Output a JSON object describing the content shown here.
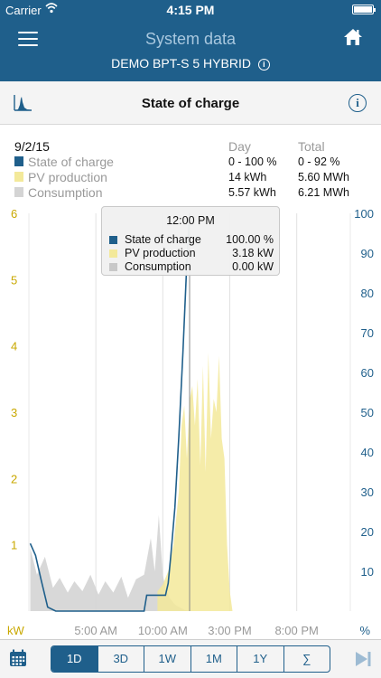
{
  "status_bar": {
    "carrier": "Carrier",
    "time": "4:15 PM"
  },
  "nav": {
    "title": "System data",
    "device": "DEMO BPT-S 5 HYBRID",
    "device_info": "i"
  },
  "chart_header": {
    "title": "State of charge",
    "info": "i"
  },
  "summary": {
    "date": "9/2/15",
    "col_day": "Day",
    "col_total": "Total",
    "rows": [
      {
        "name": "State of charge",
        "day": "0 - 100 %",
        "total": "0 - 92 %",
        "color": "#1f5f8b"
      },
      {
        "name": "PV production",
        "day": "14 kWh",
        "total": "5.60 MWh",
        "color": "#f3e99a"
      },
      {
        "name": "Consumption",
        "day": "5.57 kWh",
        "total": "6.21 MWh",
        "color": "#d4d4d4"
      }
    ]
  },
  "tooltip": {
    "title": "12:00 PM",
    "rows": [
      {
        "label": "State of charge",
        "value": "100.00 %",
        "color": "#1f5f8b"
      },
      {
        "label": "PV production",
        "value": "3.18 kW",
        "color": "#f3e99a"
      },
      {
        "label": "Consumption",
        "value": "0.00 kW",
        "color": "#c8c8c8"
      }
    ]
  },
  "chart_data": {
    "type": "area",
    "x_unit": "hour",
    "xlim": [
      0,
      24
    ],
    "x_ticks": [
      {
        "x": 5,
        "label": "5:00 AM"
      },
      {
        "x": 10,
        "label": "10:00 AM"
      },
      {
        "x": 15,
        "label": "3:00 PM"
      },
      {
        "x": 20,
        "label": "8:00 PM"
      }
    ],
    "y_left": {
      "unit": "kW",
      "range": [
        0,
        6
      ],
      "ticks": [
        1,
        2,
        3,
        4,
        5,
        6
      ],
      "color": "#c9a800"
    },
    "y_right": {
      "unit": "%",
      "range": [
        0,
        100
      ],
      "ticks": [
        10,
        20,
        30,
        40,
        50,
        60,
        70,
        80,
        90,
        100
      ],
      "color": "#1f5f8b"
    },
    "cursor_x": 12,
    "series": [
      {
        "name": "Consumption",
        "axis": "left",
        "color": "#d4d4d4",
        "x": [
          0.1,
          0.6,
          1.2,
          1.8,
          2.3,
          2.9,
          3.4,
          4.0,
          4.6,
          5.2,
          5.7,
          6.3,
          6.9,
          7.4,
          8.0,
          8.6,
          9.1,
          9.4,
          9.7,
          10.0,
          10.2,
          10.5,
          10.9,
          11.3,
          11.6,
          12.0
        ],
        "values": [
          0.95,
          0.55,
          0.82,
          0.35,
          0.5,
          0.28,
          0.45,
          0.3,
          0.55,
          0.25,
          0.45,
          0.28,
          0.52,
          0.2,
          0.48,
          0.55,
          1.1,
          0.6,
          1.45,
          0.55,
          0.35,
          0.2,
          0.1,
          0.05,
          0.02,
          0.0
        ]
      },
      {
        "name": "PV production",
        "axis": "left",
        "color": "#f3e99a",
        "x": [
          9.6,
          10.0,
          10.4,
          10.8,
          11.2,
          11.4,
          11.6,
          11.8,
          12.0,
          12.2,
          12.4,
          12.6,
          12.8,
          13.0,
          13.2,
          13.4,
          13.6,
          13.8,
          14.0,
          14.2,
          14.4,
          14.6,
          14.8,
          15.0,
          15.2
        ],
        "values": [
          0.3,
          0.4,
          0.6,
          1.0,
          1.8,
          2.8,
          3.1,
          2.3,
          3.18,
          3.4,
          2.8,
          3.5,
          2.2,
          3.7,
          2.1,
          3.9,
          2.6,
          3.2,
          3.0,
          3.85,
          2.6,
          2.3,
          1.0,
          0.3,
          0.0
        ]
      },
      {
        "name": "State of charge",
        "axis": "right",
        "color": "#1f5f8b",
        "x": [
          0.1,
          0.5,
          0.9,
          1.4,
          2.0,
          3.0,
          4.0,
          5.0,
          6.0,
          7.0,
          8.0,
          8.6,
          8.8,
          9.5,
          10.2,
          10.4,
          10.6,
          10.9,
          11.2,
          11.5,
          11.8,
          12.0
        ],
        "values": [
          17,
          14,
          8,
          1,
          0,
          0,
          0,
          0,
          0,
          0,
          0,
          0,
          4,
          4,
          4,
          7,
          14,
          26,
          44,
          65,
          88,
          100
        ]
      }
    ]
  },
  "toolbar": {
    "segments": [
      "1D",
      "3D",
      "1W",
      "1M",
      "1Y",
      "∑"
    ],
    "active": "1D"
  }
}
